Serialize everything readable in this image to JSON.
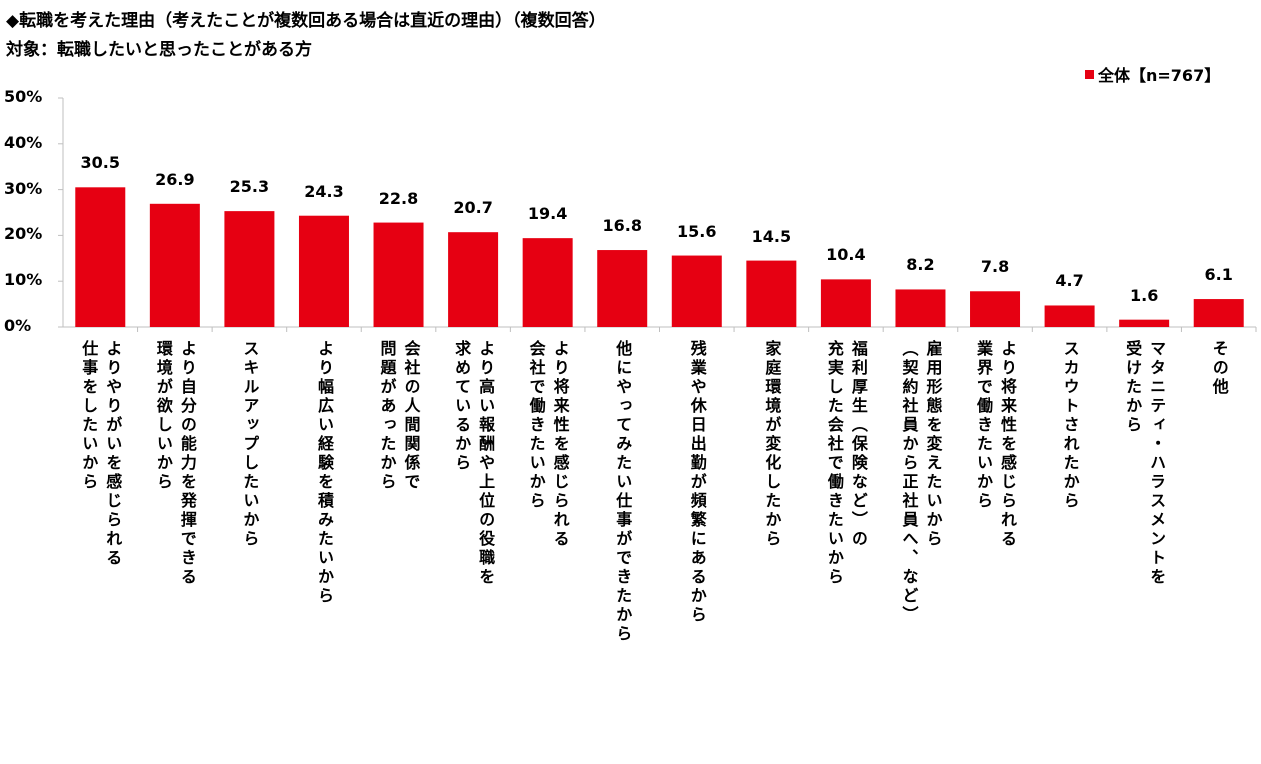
{
  "title": "◆転職を考えた理由（考えたことが複数回ある場合は直近の理由）（複数回答）",
  "subtitle": "対象：転職したいと思ったことがある方",
  "legend": "全体【n=767】",
  "colors": {
    "bar": "#e60012",
    "axis": "#bfbfbf"
  },
  "chart_data": {
    "type": "bar",
    "title": "◆転職を考えた理由（考えたことが複数回ある場合は直近の理由）（複数回答）",
    "subtitle": "対象：転職したいと思ったことがある方",
    "ylim": [
      0,
      50
    ],
    "yticks": [
      "0%",
      "10%",
      "20%",
      "30%",
      "40%",
      "50%"
    ],
    "grid": false,
    "legend_position": "top-right",
    "categories": [
      [
        "よりやりがいを感じられる",
        "仕事をしたいから"
      ],
      [
        "より自分の能力を発揮できる",
        "環境が欲しいから"
      ],
      [
        "スキルアップしたいから"
      ],
      [
        "より幅広い経験を積みたいから"
      ],
      [
        "会社の人間関係で",
        "問題があったから"
      ],
      [
        "より高い報酬や上位の役職を",
        "求めているから"
      ],
      [
        "より将来性を感じられる",
        "会社で働きたいから"
      ],
      [
        "他にやってみたい仕事ができたから"
      ],
      [
        "残業や休日出勤が頻繁にあるから"
      ],
      [
        "家庭環境が変化したから"
      ],
      [
        "福利厚生（保険など）の",
        "充実した会社で働きたいから"
      ],
      [
        "雇用形態を変えたいから",
        "（契約社員から正社員へ、など）"
      ],
      [
        "より将来性を感じられる",
        "業界で働きたいから"
      ],
      [
        "スカウトされたから"
      ],
      [
        "マタニティ・ハラスメントを",
        "受けたから"
      ],
      [
        "その他"
      ]
    ],
    "series": [
      {
        "name": "全体【n=767】",
        "values": [
          30.5,
          26.9,
          25.3,
          24.3,
          22.8,
          20.7,
          19.4,
          16.8,
          15.6,
          14.5,
          10.4,
          8.2,
          7.8,
          4.7,
          1.6,
          6.1
        ]
      }
    ],
    "data_labels": [
      "30.5",
      "26.9",
      "25.3",
      "24.3",
      "22.8",
      "20.7",
      "19.4",
      "16.8",
      "15.6",
      "14.5",
      "10.4",
      "8.2",
      "7.8",
      "4.7",
      "1.6",
      "6.1"
    ]
  }
}
